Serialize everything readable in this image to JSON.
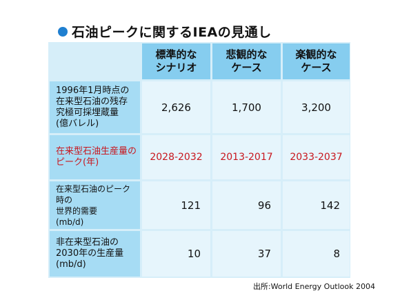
{
  "title": "石油ピークに関するIEAの見通し",
  "colors": {
    "header_bg": "#86cdef",
    "label_bg": "#a6dcf4",
    "cell_bg": "#e6f5fc",
    "highlight_text": "#c8161d",
    "bullet": "#1f7fd0"
  },
  "columns": [
    "標準的な\nシナリオ",
    "悲観的な\nケース",
    "楽観的な\nケース"
  ],
  "rows": [
    {
      "label": "1996年1月時点の\n在来型石油の残存\n究極可採埋蔵量\n(億バレル)",
      "values": [
        "2,626",
        "1,700",
        "3,200"
      ]
    },
    {
      "label": "在来型石油生産量の\nピーク(年)",
      "values": [
        "2028-2032",
        "2013-2017",
        "2033-2037"
      ]
    },
    {
      "label": "在来型石油のピーク時の\n世界的需要\n(mb/d)",
      "values": [
        "121",
        "96",
        "142"
      ]
    },
    {
      "label": "非在来型石油の\n2030年の生産量\n(mb/d)",
      "values": [
        "10",
        "37",
        "8"
      ]
    }
  ],
  "source": "出所:World Energy Outlook 2004"
}
